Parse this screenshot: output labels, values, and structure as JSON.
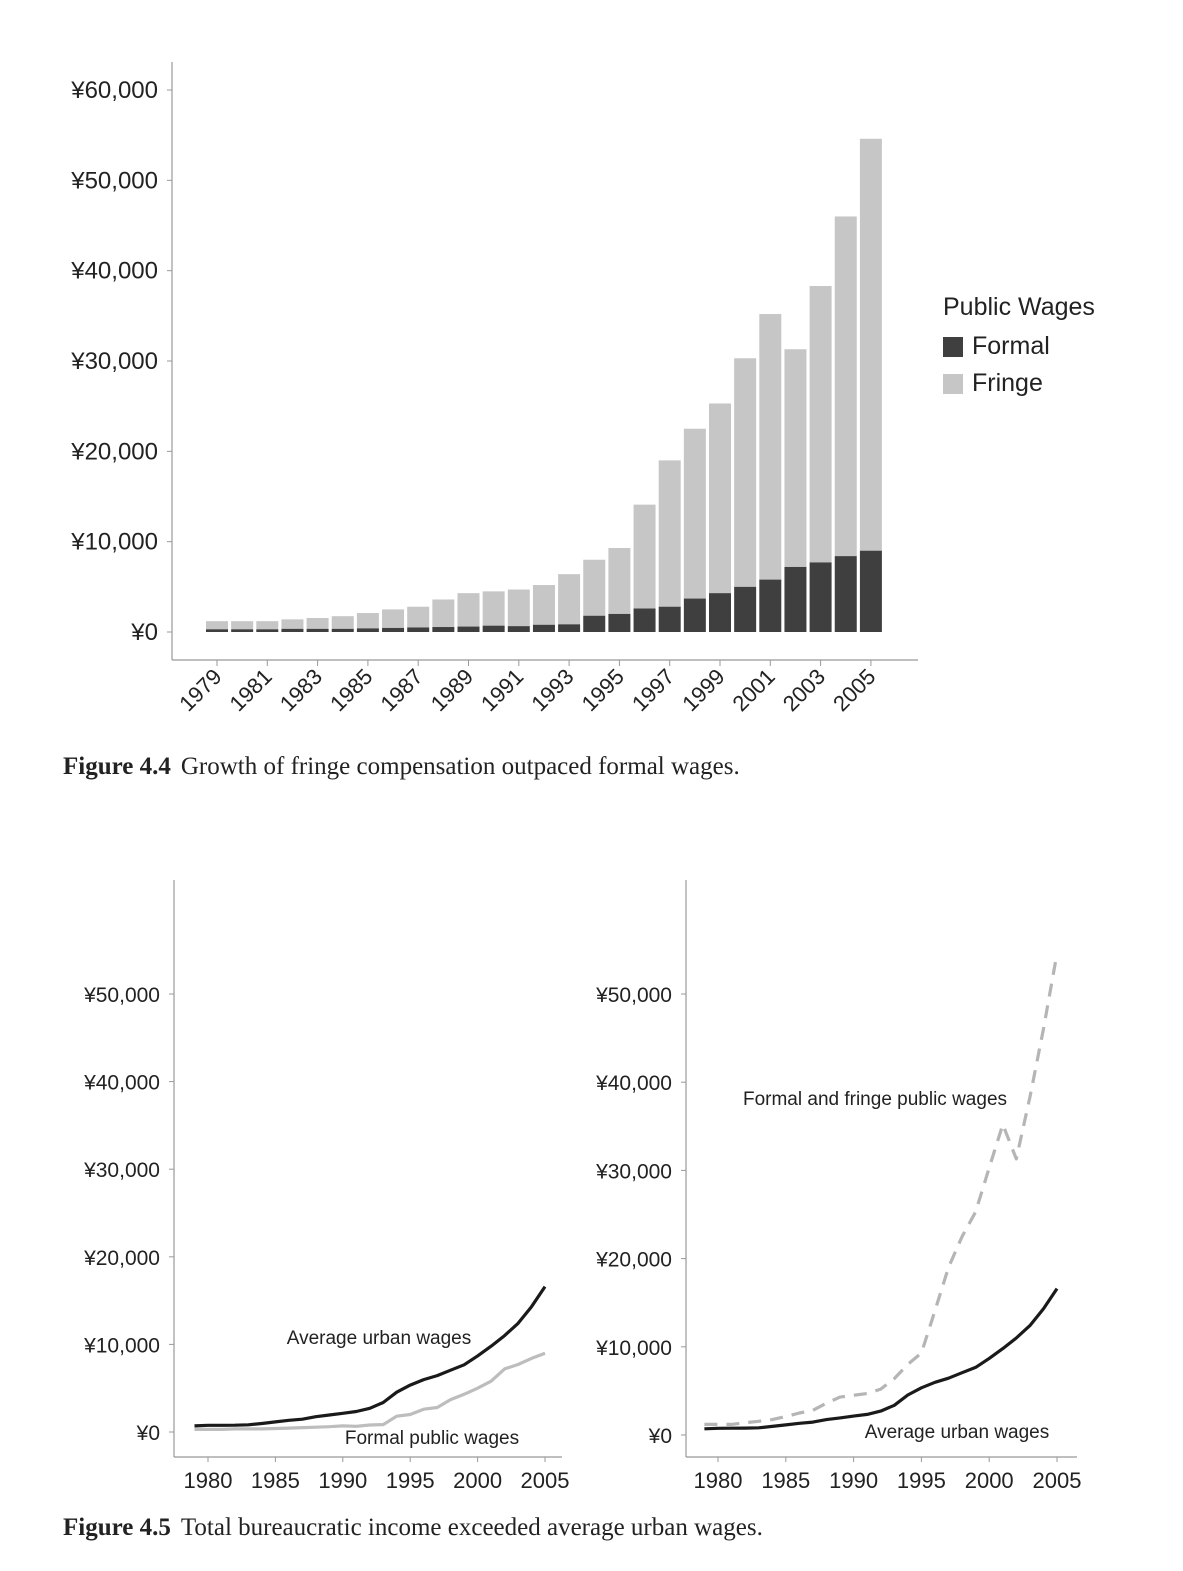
{
  "figure_4_4": {
    "caption_label": "Figure 4.4",
    "caption_text": "Growth of fringe compensation outpaced formal wages."
  },
  "figure_4_5": {
    "caption_label": "Figure 4.5",
    "caption_text": "Total bureaucratic income exceeded average urban wages."
  },
  "chart_data": [
    {
      "type": "bar",
      "stacked": true,
      "title": "",
      "xlabel": "",
      "ylabel": "",
      "ylim": [
        0,
        60000
      ],
      "y_ticks": [
        0,
        10000,
        20000,
        30000,
        40000,
        50000,
        60000
      ],
      "y_tick_labels": [
        "¥0",
        "¥10,000",
        "¥20,000",
        "¥30,000",
        "¥40,000",
        "¥50,000",
        "¥60,000"
      ],
      "categories": [
        "1979",
        "1980",
        "1981",
        "1982",
        "1983",
        "1984",
        "1985",
        "1986",
        "1987",
        "1988",
        "1989",
        "1990",
        "1991",
        "1992",
        "1993",
        "1994",
        "1995",
        "1996",
        "1997",
        "1998",
        "1999",
        "2000",
        "2001",
        "2002",
        "2003",
        "2004",
        "2005"
      ],
      "x_tick_labels": [
        "1979",
        "1981",
        "1983",
        "1985",
        "1987",
        "1989",
        "1991",
        "1993",
        "1995",
        "1997",
        "1999",
        "2001",
        "2003",
        "2005"
      ],
      "legend": {
        "title": "Public Wages",
        "position": "right"
      },
      "series": [
        {
          "name": "Formal",
          "color": "#3f3f3f",
          "values": [
            300,
            300,
            300,
            350,
            350,
            350,
            400,
            450,
            500,
            550,
            600,
            700,
            650,
            800,
            850,
            1800,
            2000,
            2600,
            2800,
            3700,
            4300,
            5000,
            5800,
            7200,
            7700,
            8400,
            9000
          ]
        },
        {
          "name": "Fringe",
          "color": "#c6c6c6",
          "values": [
            900,
            900,
            900,
            1050,
            1200,
            1400,
            1700,
            2050,
            2300,
            3050,
            3700,
            3800,
            4050,
            4400,
            5550,
            6200,
            7300,
            11500,
            16200,
            18800,
            21000,
            25300,
            29400,
            24100,
            30600,
            37600,
            45600
          ]
        }
      ],
      "grid": false
    },
    {
      "type": "line",
      "title": "",
      "xlabel": "",
      "ylabel": "",
      "xlim": [
        1978,
        2006
      ],
      "ylim": [
        0,
        63000
      ],
      "x_ticks": [
        1980,
        1985,
        1990,
        1995,
        2000,
        2005
      ],
      "y_ticks": [
        0,
        10000,
        20000,
        30000,
        40000,
        50000
      ],
      "y_tick_labels": [
        "¥0",
        "¥10,000",
        "¥20,000",
        "¥30,000",
        "¥40,000",
        "¥50,000"
      ],
      "x": [
        1979,
        1980,
        1981,
        1982,
        1983,
        1984,
        1985,
        1986,
        1987,
        1988,
        1989,
        1990,
        1991,
        1992,
        1993,
        1994,
        1995,
        1996,
        1997,
        1998,
        1999,
        2000,
        2001,
        2002,
        2003,
        2004,
        2005
      ],
      "series": [
        {
          "name": "Average urban wages",
          "color": "#1a1a1a",
          "style": "solid",
          "values": [
            700,
            760,
            770,
            780,
            820,
            970,
            1150,
            1330,
            1460,
            1750,
            1940,
            2140,
            2340,
            2710,
            3370,
            4540,
            5350,
            5980,
            6440,
            7060,
            7670,
            8690,
            9800,
            11000,
            12400,
            14300,
            16600
          ]
        },
        {
          "name": "Formal public wages",
          "color": "#bdbdbd",
          "style": "solid",
          "values": [
            300,
            300,
            300,
            350,
            350,
            350,
            400,
            450,
            500,
            550,
            600,
            700,
            650,
            800,
            850,
            1800,
            2000,
            2600,
            2800,
            3700,
            4300,
            5000,
            5800,
            7200,
            7700,
            8400,
            9000
          ]
        }
      ],
      "annotations": [
        "Average urban wages",
        "Formal public wages"
      ],
      "grid": false
    },
    {
      "type": "line",
      "title": "",
      "xlabel": "",
      "ylabel": "",
      "xlim": [
        1978,
        2006
      ],
      "ylim": [
        0,
        63000
      ],
      "x_ticks": [
        1980,
        1985,
        1990,
        1995,
        2000,
        2005
      ],
      "y_ticks": [
        0,
        10000,
        20000,
        30000,
        40000,
        50000
      ],
      "y_tick_labels": [
        "¥0",
        "¥10,000",
        "¥20,000",
        "¥30,000",
        "¥40,000",
        "¥50,000"
      ],
      "x": [
        1979,
        1980,
        1981,
        1982,
        1983,
        1984,
        1985,
        1986,
        1987,
        1988,
        1989,
        1990,
        1991,
        1992,
        1993,
        1994,
        1995,
        1996,
        1997,
        1998,
        1999,
        2000,
        2001,
        2002,
        2003,
        2004,
        2005
      ],
      "series": [
        {
          "name": "Formal and fringe public wages",
          "color": "#b5b5b5",
          "style": "dashed",
          "values": [
            1200,
            1200,
            1200,
            1400,
            1550,
            1750,
            2100,
            2500,
            2800,
            3600,
            4300,
            4500,
            4700,
            5200,
            6400,
            8000,
            9300,
            14100,
            19000,
            22500,
            25300,
            30300,
            35200,
            31300,
            38300,
            46000,
            54600
          ]
        },
        {
          "name": "Average urban wages",
          "color": "#1a1a1a",
          "style": "solid",
          "values": [
            700,
            760,
            770,
            780,
            820,
            970,
            1150,
            1330,
            1460,
            1750,
            1940,
            2140,
            2340,
            2710,
            3370,
            4540,
            5350,
            5980,
            6440,
            7060,
            7670,
            8690,
            9800,
            11000,
            12400,
            14300,
            16600
          ]
        }
      ],
      "annotations": [
        "Formal and fringe public wages",
        "Average urban wages"
      ],
      "grid": false
    }
  ]
}
